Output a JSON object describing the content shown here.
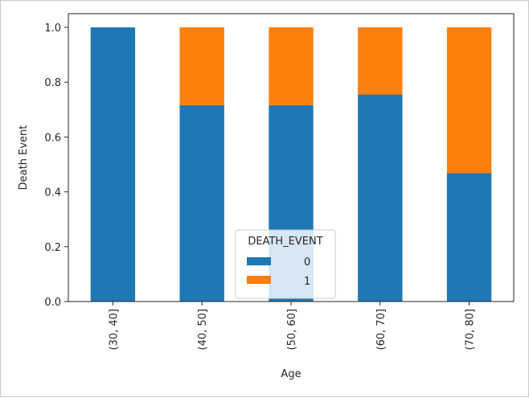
{
  "chart_data": {
    "type": "bar",
    "stacked": true,
    "categories": [
      "(30, 40]",
      "(40, 50]",
      "(50, 60]",
      "(60, 70]",
      "(70, 80]"
    ],
    "series": [
      {
        "name": "0",
        "values": [
          1.0,
          0.716,
          0.716,
          0.755,
          0.468
        ],
        "color": "#1f77b4"
      },
      {
        "name": "1",
        "values": [
          0.0,
          0.284,
          0.284,
          0.245,
          0.532
        ],
        "color": "#ff7f0e"
      }
    ],
    "xlabel": "Age",
    "ylabel": "Death Event",
    "ylim": [
      0,
      1.05
    ],
    "yticks": [
      "0.0",
      "0.2",
      "0.4",
      "0.6",
      "0.8",
      "1.0"
    ],
    "legend": {
      "title": "DEATH_EVENT",
      "placement": "lower-center"
    },
    "grid": false
  }
}
